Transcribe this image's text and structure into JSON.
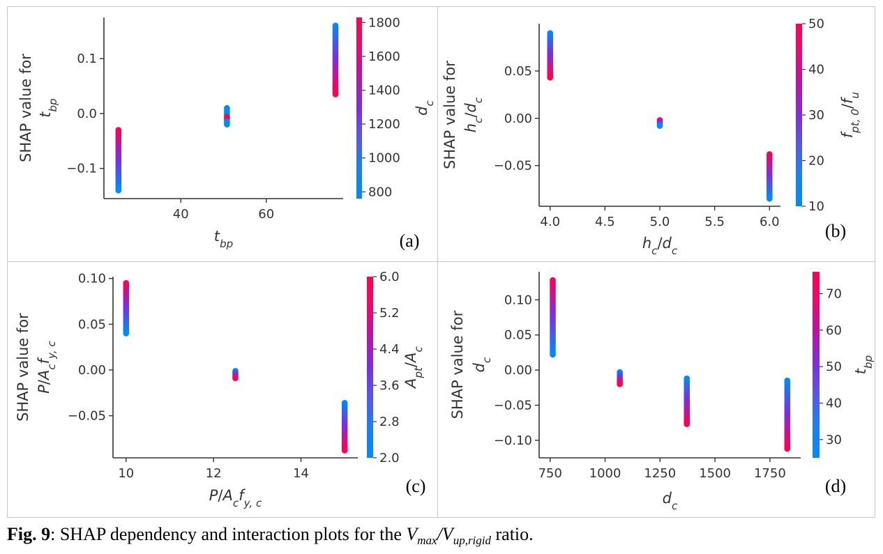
{
  "caption": {
    "label": "Fig. 9",
    "text_before": ": SHAP dependency and interaction plots for the ",
    "math": "Vmax/Vup,rigid",
    "text_after": " ratio."
  },
  "colormap": {
    "low": "#008afb",
    "mid": "#7c2ee0",
    "high": "#ff0052"
  },
  "chart_data": [
    {
      "panel": "(a)",
      "type": "scatter",
      "xlabel": "t_bp",
      "ylabel": "SHAP value for t_bp",
      "xlim": [
        22,
        78
      ],
      "ylim": [
        -0.155,
        0.175
      ],
      "xticks": [
        40,
        60
      ],
      "yticks": [
        -0.1,
        0.0,
        0.1
      ],
      "ytick_labels": [
        "−0.1",
        "0.0",
        "0.1"
      ],
      "colorbar": {
        "label": "d_c",
        "range": [
          760,
          1830
        ],
        "ticks": [
          800,
          1000,
          1200,
          1400,
          1600,
          1800
        ]
      },
      "points": [
        {
          "x": 25.4,
          "y_min": -0.14,
          "y_max": -0.03,
          "c_bottom": 0.0,
          "c_top": 1.0
        },
        {
          "x": 50.8,
          "y_min": -0.02,
          "y_max": 0.01,
          "c_bottom": 0.0,
          "c_top": 0.0,
          "accent": [
            -0.01,
            1.0
          ]
        },
        {
          "x": 76.2,
          "y_min": 0.035,
          "y_max": 0.16,
          "c_bottom": 1.0,
          "c_top": 0.0
        }
      ]
    },
    {
      "panel": "(b)",
      "type": "scatter",
      "xlabel": "h_c/d_c",
      "ylabel": "SHAP value for h_c/d_c",
      "xlim": [
        3.9,
        6.1
      ],
      "ylim": [
        -0.093,
        0.1
      ],
      "xticks": [
        4.0,
        4.5,
        5.0,
        5.5,
        6.0
      ],
      "xtick_labels": [
        "4.0",
        "4.5",
        "5.0",
        "5.5",
        "6.0"
      ],
      "yticks": [
        -0.05,
        0.0,
        0.05
      ],
      "ytick_labels": [
        "−0.05",
        "0.00",
        "0.05"
      ],
      "colorbar": {
        "label": "f_pt,0/f_u",
        "range": [
          10,
          50
        ],
        "ticks": [
          10,
          20,
          30,
          40,
          50
        ]
      },
      "points": [
        {
          "x": 4.0,
          "y_min": 0.043,
          "y_max": 0.09,
          "c_bottom": 1.0,
          "c_top": 0.0
        },
        {
          "x": 5.0,
          "y_min": -0.008,
          "y_max": -0.002,
          "c_bottom": 0.0,
          "c_top": 1.0
        },
        {
          "x": 6.0,
          "y_min": -0.085,
          "y_max": -0.038,
          "c_bottom": 0.0,
          "c_top": 1.0
        }
      ]
    },
    {
      "panel": "(c)",
      "type": "scatter",
      "xlabel": "P/A_c f_y,c",
      "ylabel": "SHAP value for P/A_c f_y,c",
      "xlim": [
        9.7,
        15.3
      ],
      "ylim": [
        -0.096,
        0.102
      ],
      "xticks": [
        10,
        12,
        14
      ],
      "yticks": [
        -0.05,
        0.0,
        0.05,
        0.1
      ],
      "ytick_labels": [
        "−0.05",
        "0.00",
        "0.05",
        "0.10"
      ],
      "colorbar": {
        "label": "A_pt/A_c",
        "range": [
          2.0,
          6.0
        ],
        "ticks": [
          2.0,
          2.8,
          3.6,
          4.4,
          5.2,
          6.0
        ],
        "tick_labels": [
          "2.0",
          "2.8",
          "3.6",
          "4.4",
          "5.2",
          "6.0"
        ]
      },
      "points": [
        {
          "x": 10.0,
          "y_min": 0.04,
          "y_max": 0.095,
          "c_bottom": 0.0,
          "c_top": 1.0
        },
        {
          "x": 12.5,
          "y_min": -0.009,
          "y_max": -0.001,
          "c_bottom": 1.0,
          "c_top": 0.0
        },
        {
          "x": 15.0,
          "y_min": -0.088,
          "y_max": -0.036,
          "c_bottom": 1.0,
          "c_top": 0.0
        }
      ]
    },
    {
      "panel": "(d)",
      "type": "scatter",
      "xlabel": "d_c",
      "ylabel": "SHAP value for d_c",
      "xlim": [
        700,
        1890
      ],
      "ylim": [
        -0.125,
        0.14
      ],
      "xticks": [
        750,
        1000,
        1250,
        1500,
        1750
      ],
      "yticks": [
        -0.1,
        -0.05,
        0.0,
        0.05,
        0.1
      ],
      "ytick_labels": [
        "−0.10",
        "−0.05",
        "0.00",
        "0.05",
        "0.10"
      ],
      "colorbar": {
        "label": "t_bp",
        "range": [
          25,
          76
        ],
        "ticks": [
          30,
          40,
          50,
          60,
          70
        ]
      },
      "points": [
        {
          "x": 762,
          "y_min": 0.022,
          "y_max": 0.128,
          "c_bottom": 0.0,
          "c_top": 1.0
        },
        {
          "x": 1067,
          "y_min": -0.02,
          "y_max": -0.003,
          "c_bottom": 1.0,
          "c_top": 0.0
        },
        {
          "x": 1372,
          "y_min": -0.077,
          "y_max": -0.012,
          "c_bottom": 1.0,
          "c_top": 0.0
        },
        {
          "x": 1829,
          "y_min": -0.112,
          "y_max": -0.015,
          "c_bottom": 1.0,
          "c_top": 0.0
        }
      ]
    }
  ]
}
